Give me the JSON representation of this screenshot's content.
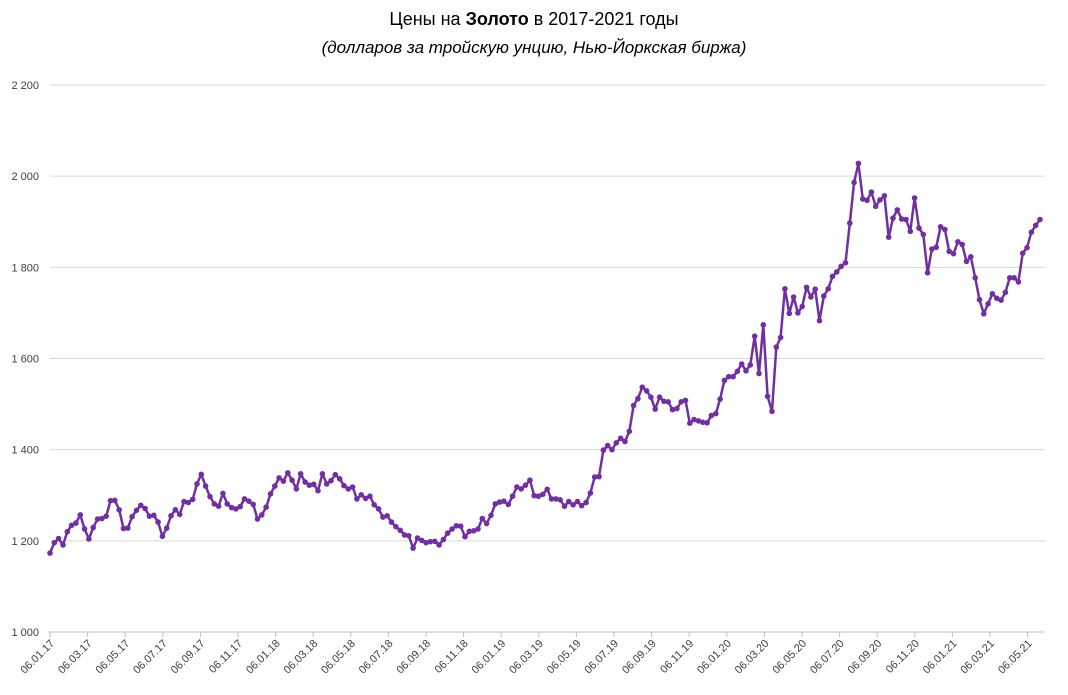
{
  "header": {
    "title_prefix": "Цены на ",
    "title_bold": "Золото",
    "title_suffix": " в 2017-2021 годы",
    "subtitle": "(долларов за тройскую унцию, Нью-Йоркская биржа)"
  },
  "chart_data": {
    "type": "line",
    "description": "Weekly gold price, USD per troy ounce, New York exchange, Jan 2017 - Jun 2021",
    "x_frequency": "weekly",
    "x_tick_labels": [
      "06.01.17",
      "06.03.17",
      "06.05.17",
      "06.07.17",
      "06.09.17",
      "06.11.17",
      "06.01.18",
      "06.03.18",
      "06.05.18",
      "06.07.18",
      "06.09.18",
      "06.11.18",
      "06.01.19",
      "06.03.19",
      "06.05.19",
      "06.07.19",
      "06.09.19",
      "06.11.19",
      "06.01.20",
      "06.03.20",
      "06.05.20",
      "06.07.20",
      "06.09.20",
      "06.11.20",
      "06.01.21",
      "06.03.21",
      "06.05.21"
    ],
    "y_ticks": [
      1000,
      1200,
      1400,
      1600,
      1800,
      2000,
      2200
    ],
    "y_tick_labels": [
      "1 000",
      "1 200",
      "1 400",
      "1 600",
      "1 800",
      "2 000",
      "2 200"
    ],
    "ylim": [
      1000,
      2200
    ],
    "grid": "horizontal",
    "legend": "none",
    "colors": {
      "line": "#7030A0",
      "marker": "#7030A0",
      "gridline": "#D9D9D9",
      "axis_line": "#BFBFBF",
      "tick_text": "#404040"
    },
    "values": [
      1173,
      1196,
      1205,
      1191,
      1220,
      1234,
      1239,
      1257,
      1226,
      1204,
      1229,
      1248,
      1249,
      1254,
      1288,
      1289,
      1268,
      1227,
      1228,
      1253,
      1267,
      1278,
      1271,
      1254,
      1256,
      1241,
      1210,
      1228,
      1255,
      1268,
      1258,
      1286,
      1284,
      1291,
      1325,
      1346,
      1320,
      1297,
      1281,
      1276,
      1304,
      1281,
      1273,
      1270,
      1275,
      1292,
      1287,
      1280,
      1248,
      1257,
      1274,
      1303,
      1320,
      1338,
      1331,
      1349,
      1333,
      1314,
      1347,
      1329,
      1322,
      1324,
      1310,
      1347,
      1325,
      1332,
      1345,
      1336,
      1321,
      1314,
      1318,
      1292,
      1301,
      1293,
      1298,
      1279,
      1270,
      1252,
      1255,
      1241,
      1231,
      1223,
      1213,
      1211,
      1184,
      1206,
      1201,
      1196,
      1198,
      1199,
      1191,
      1203,
      1217,
      1226,
      1233,
      1232,
      1209,
      1221,
      1222,
      1226,
      1249,
      1238,
      1256,
      1281,
      1285,
      1287,
      1280,
      1298,
      1318,
      1314,
      1322,
      1333,
      1299,
      1298,
      1302,
      1313,
      1292,
      1292,
      1290,
      1276,
      1286,
      1279,
      1286,
      1277,
      1284,
      1305,
      1340,
      1341,
      1399,
      1409,
      1400,
      1415,
      1425,
      1418,
      1440,
      1497,
      1512,
      1537,
      1529,
      1515,
      1489,
      1515,
      1506,
      1505,
      1488,
      1490,
      1505,
      1508,
      1458,
      1466,
      1463,
      1460,
      1459,
      1475,
      1479,
      1511,
      1552,
      1560,
      1560,
      1572,
      1588,
      1573,
      1586,
      1649,
      1567,
      1674,
      1517,
      1484,
      1625,
      1646,
      1753,
      1699,
      1735,
      1700,
      1714,
      1756,
      1735,
      1752,
      1683,
      1737,
      1753,
      1780,
      1790,
      1802,
      1810,
      1897,
      1986,
      2028,
      1950,
      1947,
      1965,
      1934,
      1948,
      1957,
      1866,
      1908,
      1926,
      1906,
      1905,
      1879,
      1952,
      1886,
      1872,
      1788,
      1840,
      1844,
      1889,
      1883,
      1835,
      1830,
      1856,
      1850,
      1813,
      1823,
      1777,
      1729,
      1698,
      1720,
      1742,
      1732,
      1728,
      1745,
      1777,
      1777,
      1768,
      1831,
      1843,
      1877,
      1892,
      1905
    ]
  }
}
